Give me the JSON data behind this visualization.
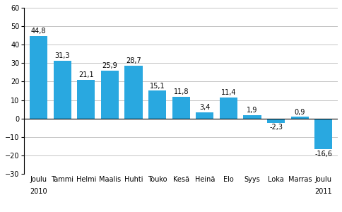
{
  "categories": [
    "Joulu",
    "Tammi",
    "Helmi",
    "Maalis",
    "Huhti",
    "Touko",
    "Kesä",
    "Heinä",
    "Elo",
    "Syys",
    "Loka",
    "Marras",
    "Joulu"
  ],
  "values": [
    44.8,
    31.3,
    21.1,
    25.9,
    28.7,
    15.1,
    11.8,
    3.4,
    11.4,
    1.9,
    -2.3,
    0.9,
    -16.6
  ],
  "bar_color": "#29a8e0",
  "ylim": [
    -30,
    60
  ],
  "yticks": [
    -30,
    -20,
    -10,
    0,
    10,
    20,
    30,
    40,
    50,
    60
  ],
  "year_labels": [
    [
      "2010",
      0
    ],
    [
      "2011",
      12
    ]
  ],
  "label_fontsize": 7.0,
  "tick_fontsize": 7.0,
  "background_color": "#ffffff",
  "grid_color": "#bbbbbb"
}
